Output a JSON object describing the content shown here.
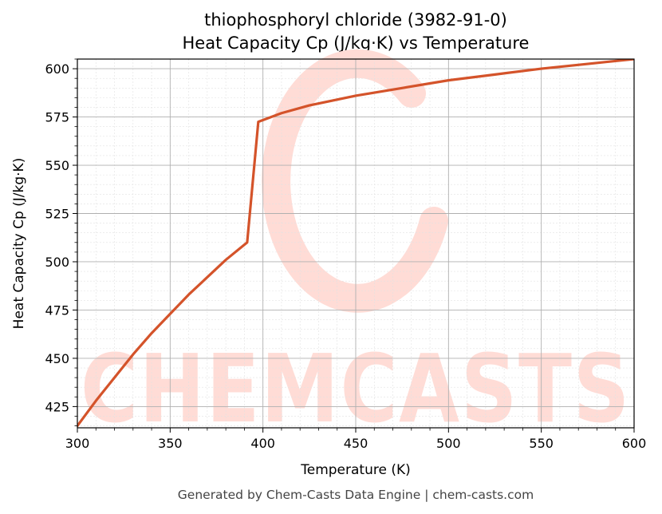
{
  "chart_data": {
    "type": "line",
    "title": "thiophosphoryl chloride (3982-91-0)",
    "subtitle": "Heat Capacity Cp (J/kg·K) vs Temperature",
    "xlabel": "Temperature (K)",
    "ylabel": "Heat Capacity Cp (J/kg·K)",
    "xlim": [
      300,
      600
    ],
    "ylim": [
      414,
      605
    ],
    "xticks": [
      300,
      350,
      400,
      450,
      500,
      550,
      600
    ],
    "yticks": [
      425,
      450,
      475,
      500,
      525,
      550,
      575,
      600
    ],
    "grid": true,
    "series": [
      {
        "color": "#d4532a",
        "x": [
          300,
          310,
          320,
          330,
          340,
          350,
          360,
          370,
          380,
          391.5,
          397.5,
          410,
          425,
          450,
          475,
          500,
          525,
          550,
          575,
          600
        ],
        "y": [
          415,
          428,
          440,
          452,
          463,
          473,
          483,
          492,
          501,
          510,
          572.5,
          577,
          581,
          586,
          590,
          594,
          597,
          600,
          602.5,
          605
        ]
      }
    ]
  },
  "watermark": {
    "text": "CHEMCASTS",
    "color": "#ffdcd6"
  },
  "footer": "Generated by Chem-Casts Data Engine | chem-casts.com"
}
